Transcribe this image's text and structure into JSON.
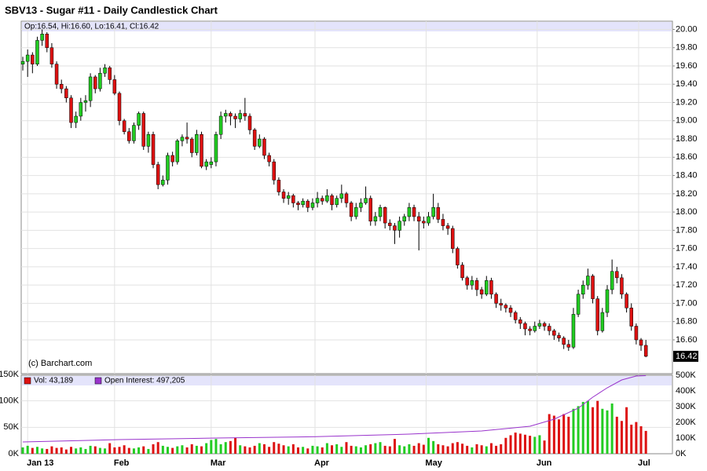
{
  "chart_data": {
    "type": "candlestick",
    "title": "SBV13 - Sugar #11 - Daily Candlestick Chart",
    "legend_text": "Op:16.54, Hi:16.60, Lo:16.41, Cl:16.42",
    "credit": "(c) Barchart.com",
    "last_price": 16.42,
    "up_color": "#22cc22",
    "down_color": "#dd1111",
    "grid": true,
    "xlim": [
      -0.33,
      134.5
    ],
    "xticks": [
      {
        "value": 1,
        "label": "Jan 13"
      },
      {
        "value": 19,
        "label": "Feb"
      },
      {
        "value": 39,
        "label": "Mar"
      },
      {
        "value": 60.5,
        "label": "Apr"
      },
      {
        "value": 83.5,
        "label": "May"
      },
      {
        "value": 106.5,
        "label": "Jun"
      },
      {
        "value": 127.5,
        "label": "Jul"
      }
    ],
    "ylim": [
      16.23,
      20.09
    ],
    "yticks": [
      {
        "value": 16.6,
        "label": "16.60"
      },
      {
        "value": 16.8,
        "label": "16.80"
      },
      {
        "value": 17,
        "label": "17.00"
      },
      {
        "value": 17.2,
        "label": "17.20"
      },
      {
        "value": 17.4,
        "label": "17.40"
      },
      {
        "value": 17.6,
        "label": "17.60"
      },
      {
        "value": 17.8,
        "label": "17.80"
      },
      {
        "value": 18,
        "label": "18.00"
      },
      {
        "value": 18.2,
        "label": "18.20"
      },
      {
        "value": 18.4,
        "label": "18.40"
      },
      {
        "value": 18.6,
        "label": "18.60"
      },
      {
        "value": 18.8,
        "label": "18.80"
      },
      {
        "value": 19,
        "label": "19.00"
      },
      {
        "value": 19.2,
        "label": "19.20"
      },
      {
        "value": 19.4,
        "label": "19.40"
      },
      {
        "value": 19.6,
        "label": "19.60"
      },
      {
        "value": 19.8,
        "label": "19.80"
      },
      {
        "value": 20,
        "label": "20.00"
      }
    ],
    "ohlc": [
      [
        19.62,
        19.7,
        19.55,
        19.65
      ],
      [
        19.65,
        19.78,
        19.48,
        19.72
      ],
      [
        19.72,
        19.75,
        19.52,
        19.62
      ],
      [
        19.62,
        19.92,
        19.6,
        19.88
      ],
      [
        19.88,
        20.0,
        19.82,
        19.95
      ],
      [
        19.95,
        19.97,
        19.75,
        19.8
      ],
      [
        19.8,
        19.85,
        19.58,
        19.62
      ],
      [
        19.62,
        19.65,
        19.35,
        19.4
      ],
      [
        19.4,
        19.45,
        19.3,
        19.35
      ],
      [
        19.35,
        19.38,
        19.2,
        19.25
      ],
      [
        19.25,
        19.28,
        18.92,
        18.98
      ],
      [
        18.98,
        19.1,
        18.92,
        19.05
      ],
      [
        19.05,
        19.25,
        19.0,
        19.2
      ],
      [
        19.2,
        19.28,
        19.1,
        19.22
      ],
      [
        19.22,
        19.52,
        19.15,
        19.48
      ],
      [
        19.48,
        19.5,
        19.3,
        19.35
      ],
      [
        19.35,
        19.58,
        19.32,
        19.52
      ],
      [
        19.52,
        19.62,
        19.48,
        19.58
      ],
      [
        19.58,
        19.6,
        19.4,
        19.45
      ],
      [
        19.45,
        19.5,
        19.28,
        19.3
      ],
      [
        19.3,
        19.32,
        18.95,
        19.0
      ],
      [
        19.0,
        19.02,
        18.85,
        18.88
      ],
      [
        18.88,
        18.92,
        18.75,
        18.78
      ],
      [
        18.78,
        18.98,
        18.75,
        18.95
      ],
      [
        18.95,
        19.1,
        18.9,
        19.08
      ],
      [
        19.08,
        19.1,
        18.68,
        18.72
      ],
      [
        18.72,
        18.88,
        18.65,
        18.85
      ],
      [
        18.85,
        18.88,
        18.48,
        18.52
      ],
      [
        18.52,
        18.55,
        18.25,
        18.3
      ],
      [
        18.3,
        18.4,
        18.28,
        18.35
      ],
      [
        18.35,
        18.65,
        18.3,
        18.62
      ],
      [
        18.62,
        18.66,
        18.5,
        18.55
      ],
      [
        18.55,
        18.8,
        18.52,
        18.78
      ],
      [
        18.78,
        18.85,
        18.72,
        18.82
      ],
      [
        18.82,
        18.98,
        18.75,
        18.8
      ],
      [
        18.8,
        18.82,
        18.6,
        18.65
      ],
      [
        18.65,
        18.9,
        18.62,
        18.85
      ],
      [
        18.85,
        18.88,
        18.48,
        18.5
      ],
      [
        18.5,
        18.58,
        18.46,
        18.55
      ],
      [
        18.52,
        18.6,
        18.48,
        18.55
      ],
      [
        18.55,
        18.88,
        18.5,
        18.85
      ],
      [
        18.85,
        19.1,
        18.8,
        19.05
      ],
      [
        19.05,
        19.12,
        18.98,
        19.08
      ],
      [
        19.08,
        19.1,
        18.95,
        19.05
      ],
      [
        19.05,
        19.08,
        18.92,
        19.02
      ],
      [
        19.02,
        19.12,
        18.98,
        19.08
      ],
      [
        19.08,
        19.25,
        19.0,
        19.05
      ],
      [
        19.05,
        19.08,
        18.85,
        18.9
      ],
      [
        18.9,
        18.92,
        18.68,
        18.72
      ],
      [
        18.72,
        18.85,
        18.7,
        18.8
      ],
      [
        18.8,
        18.82,
        18.58,
        18.62
      ],
      [
        18.62,
        18.65,
        18.5,
        18.55
      ],
      [
        18.55,
        18.58,
        18.3,
        18.35
      ],
      [
        18.35,
        18.38,
        18.18,
        18.22
      ],
      [
        18.22,
        18.25,
        18.1,
        18.15
      ],
      [
        18.15,
        18.22,
        18.08,
        18.18
      ],
      [
        18.18,
        18.2,
        18.05,
        18.1
      ],
      [
        18.1,
        18.12,
        18.02,
        18.08
      ],
      [
        18.08,
        18.15,
        18.05,
        18.12
      ],
      [
        18.12,
        18.14,
        18.0,
        18.05
      ],
      [
        18.05,
        18.15,
        18.02,
        18.1
      ],
      [
        18.1,
        18.22,
        18.05,
        18.15
      ],
      [
        18.15,
        18.18,
        18.08,
        18.12
      ],
      [
        18.12,
        18.25,
        18.1,
        18.18
      ],
      [
        18.18,
        18.2,
        18.02,
        18.08
      ],
      [
        18.08,
        18.18,
        18.05,
        18.15
      ],
      [
        18.15,
        18.3,
        18.1,
        18.2
      ],
      [
        18.2,
        18.22,
        18.05,
        18.1
      ],
      [
        18.1,
        18.12,
        17.9,
        17.95
      ],
      [
        17.95,
        18.1,
        17.92,
        18.05
      ],
      [
        18.05,
        18.15,
        18.0,
        18.1
      ],
      [
        18.1,
        18.28,
        18.08,
        18.15
      ],
      [
        18.15,
        18.18,
        17.85,
        17.9
      ],
      [
        17.9,
        18.0,
        17.85,
        17.95
      ],
      [
        17.95,
        18.08,
        17.9,
        18.05
      ],
      [
        18.05,
        18.06,
        17.82,
        17.88
      ],
      [
        17.88,
        17.92,
        17.8,
        17.85
      ],
      [
        17.85,
        17.88,
        17.65,
        17.8
      ],
      [
        17.8,
        17.95,
        17.72,
        17.9
      ],
      [
        17.9,
        17.98,
        17.85,
        17.95
      ],
      [
        17.95,
        18.1,
        17.9,
        18.05
      ],
      [
        18.05,
        18.08,
        17.9,
        17.95
      ],
      [
        17.95,
        18.0,
        17.58,
        17.9
      ],
      [
        17.9,
        17.95,
        17.82,
        17.88
      ],
      [
        17.88,
        18.0,
        17.85,
        17.95
      ],
      [
        17.95,
        18.2,
        17.92,
        18.05
      ],
      [
        18.05,
        18.1,
        17.88,
        17.92
      ],
      [
        17.92,
        17.98,
        17.8,
        17.85
      ],
      [
        17.85,
        17.88,
        17.75,
        17.82
      ],
      [
        17.82,
        17.85,
        17.55,
        17.6
      ],
      [
        17.6,
        17.62,
        17.38,
        17.42
      ],
      [
        17.42,
        17.45,
        17.25,
        17.28
      ],
      [
        17.28,
        17.3,
        17.15,
        17.2
      ],
      [
        17.2,
        17.3,
        17.15,
        17.25
      ],
      [
        17.25,
        17.28,
        17.08,
        17.15
      ],
      [
        17.15,
        17.18,
        17.05,
        17.1
      ],
      [
        17.1,
        17.3,
        17.08,
        17.25
      ],
      [
        17.25,
        17.28,
        17.05,
        17.1
      ],
      [
        17.1,
        17.12,
        16.95,
        17.0
      ],
      [
        17.0,
        17.05,
        16.92,
        16.98
      ],
      [
        16.98,
        17.0,
        16.9,
        16.95
      ],
      [
        16.95,
        16.98,
        16.85,
        16.9
      ],
      [
        16.9,
        16.92,
        16.78,
        16.82
      ],
      [
        16.82,
        16.85,
        16.72,
        16.78
      ],
      [
        16.78,
        16.8,
        16.65,
        16.72
      ],
      [
        16.72,
        16.75,
        16.65,
        16.7
      ],
      [
        16.7,
        16.8,
        16.68,
        16.75
      ],
      [
        16.75,
        16.82,
        16.72,
        16.78
      ],
      [
        16.78,
        16.8,
        16.7,
        16.75
      ],
      [
        16.75,
        16.78,
        16.65,
        16.7
      ],
      [
        16.7,
        16.72,
        16.6,
        16.65
      ],
      [
        16.65,
        16.68,
        16.58,
        16.62
      ],
      [
        16.62,
        16.64,
        16.5,
        16.55
      ],
      [
        16.55,
        16.6,
        16.48,
        16.52
      ],
      [
        16.52,
        16.95,
        16.5,
        16.88
      ],
      [
        16.88,
        17.15,
        16.85,
        17.1
      ],
      [
        17.1,
        17.25,
        17.05,
        17.2
      ],
      [
        17.2,
        17.38,
        17.15,
        17.3
      ],
      [
        17.3,
        17.32,
        17.0,
        17.05
      ],
      [
        17.05,
        17.08,
        16.65,
        16.7
      ],
      [
        16.7,
        16.95,
        16.68,
        16.9
      ],
      [
        16.9,
        17.2,
        16.85,
        17.15
      ],
      [
        17.15,
        17.48,
        17.1,
        17.35
      ],
      [
        17.35,
        17.4,
        17.22,
        17.28
      ],
      [
        17.28,
        17.32,
        17.05,
        17.1
      ],
      [
        17.1,
        17.12,
        16.9,
        16.95
      ],
      [
        16.95,
        17.0,
        16.7,
        16.75
      ],
      [
        16.75,
        16.78,
        16.55,
        16.6
      ],
      [
        16.6,
        16.62,
        16.48,
        16.54
      ],
      [
        16.54,
        16.6,
        16.41,
        16.42
      ]
    ],
    "volume": {
      "name": "Vol: 43,189",
      "color": "#dd1111",
      "flat_color": "#1a1a80",
      "ylim": [
        0,
        150000
      ],
      "yticks": [
        {
          "value": 0,
          "label": "0K"
        },
        {
          "value": 50000,
          "label": "50K"
        },
        {
          "value": 100000,
          "label": "100K"
        },
        {
          "value": 150000,
          "label": "150K"
        }
      ],
      "values": [
        12000,
        15000,
        11000,
        13000,
        10000,
        9000,
        14000,
        11000,
        12000,
        8000,
        13000,
        10000,
        12000,
        9000,
        15000,
        14000,
        11000,
        10000,
        20000,
        12000,
        13000,
        16000,
        11000,
        10000,
        12000,
        14000,
        9000,
        18000,
        22000,
        15000,
        13000,
        11000,
        14000,
        16000,
        12000,
        18000,
        15000,
        14000,
        20000,
        26000,
        28000,
        18000,
        22000,
        24000,
        30000,
        16000,
        14000,
        12000,
        15000,
        20000,
        18000,
        13000,
        22000,
        19000,
        16000,
        14000,
        18000,
        12000,
        13000,
        10000,
        15000,
        14000,
        12000,
        20000,
        16000,
        18000,
        13000,
        22000,
        15000,
        14000,
        12000,
        16000,
        18000,
        20000,
        22000,
        15000,
        14000,
        28000,
        16000,
        14000,
        18000,
        15000,
        20000,
        17000,
        30000,
        24000,
        18000,
        16000,
        14000,
        20000,
        22000,
        19000,
        15000,
        12000,
        18000,
        16000,
        14000,
        20000,
        15000,
        18000,
        30000,
        35000,
        40000,
        38000,
        36000,
        34000,
        32000,
        35000,
        25000,
        75000,
        72000,
        65000,
        75000,
        70000,
        85000,
        90000,
        98000,
        100000,
        88000,
        100000,
        85000,
        82000,
        95000,
        70000,
        62000,
        88000,
        55000,
        60000,
        52000,
        43189
      ]
    },
    "open_interest": {
      "name": "Open Interest: 497,205",
      "color": "#9933cc",
      "ylim": [
        0,
        500000
      ],
      "yticks": [
        {
          "value": 0,
          "label": "0K"
        },
        {
          "value": 100000,
          "label": "100K"
        },
        {
          "value": 200000,
          "label": "200K"
        },
        {
          "value": 300000,
          "label": "300K"
        },
        {
          "value": 400000,
          "label": "400K"
        },
        {
          "value": 500000,
          "label": "500K"
        }
      ],
      "x": [
        0,
        20,
        40,
        60,
        80,
        95,
        105,
        110,
        115,
        118,
        121,
        124,
        127,
        129
      ],
      "values": [
        75000,
        90000,
        100000,
        108000,
        125000,
        145000,
        175000,
        220000,
        290000,
        360000,
        420000,
        470000,
        495000,
        497205
      ]
    }
  }
}
